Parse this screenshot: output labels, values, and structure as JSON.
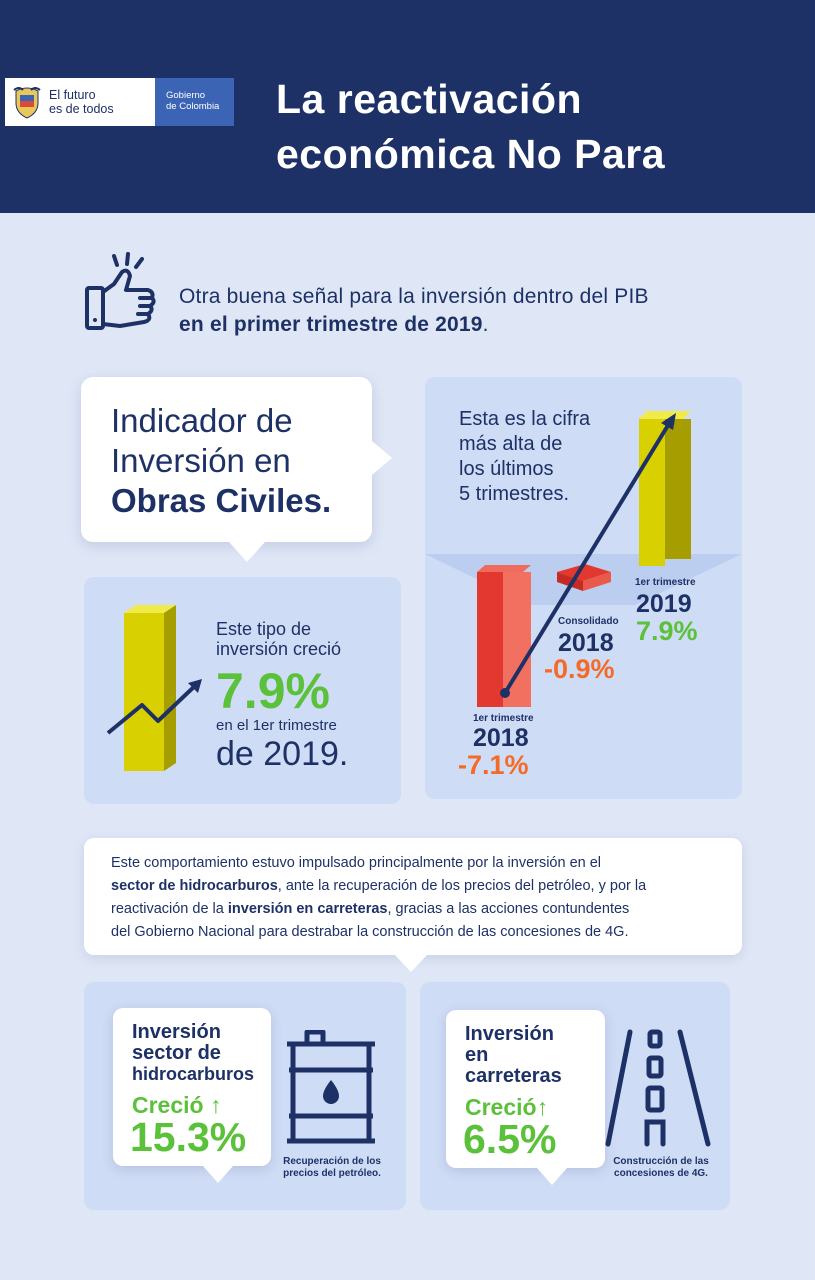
{
  "header": {
    "logo_line1": "El futuro",
    "logo_line2": "es de todos",
    "gov_line1": "Gobierno",
    "gov_line2": "de Colombia",
    "title_line1": "La reactivación",
    "title_line2": "económica No Para"
  },
  "intro": {
    "line1": "Otra buena señal para la inversión dentro del PIB",
    "line2_bold": "en el primer trimestre de 2019",
    "line2_end": "."
  },
  "indicator": {
    "line1": "Indicador de",
    "line2": "Inversión en",
    "line3_bold": "Obras Civiles."
  },
  "growth": {
    "line1": "Este tipo de",
    "line2": "inversión creció",
    "value": "7.9%",
    "line3": "en el 1er trimestre",
    "line4": "de 2019."
  },
  "quarters": {
    "note_line1": "Esta es la cifra",
    "note_line2": "más alta de",
    "note_line3": "los últimos",
    "note_line4": "5 trimestres.",
    "items": [
      {
        "label": "1er trimestre",
        "year": "2018",
        "value": "-7.1%"
      },
      {
        "label": "Consolidado",
        "year": "2018",
        "value": "-0.9%"
      },
      {
        "label": "1er trimestre",
        "year": "2019",
        "value": "7.9%"
      }
    ]
  },
  "explanation": {
    "p1": "Este comportamiento estuvo impulsado principalmente por la inversión en el",
    "b1": "sector de hidrocarburos",
    "p2": ", ante la recuperación de los precios del petróleo, y por la",
    "p3": "reactivación de la ",
    "b2": "inversión en carreteras",
    "p4": ", gracias a las acciones contundentes",
    "p5": "del Gobierno Nacional para destrabar la construcción de las concesiones de 4G."
  },
  "cards": [
    {
      "title_line1": "Inversión",
      "title_line2": "sector de",
      "title_line3": "hidrocarburos",
      "grew": "Creció ↑",
      "value": "15.3%",
      "caption_line1": "Recuperación de los",
      "caption_line2": "precios del petróleo.",
      "icon": "oil-barrel-icon"
    },
    {
      "title_line1": "Inversión",
      "title_line2": "en",
      "title_line3": "carreteras",
      "grew": "Creció↑",
      "value": "6.5%",
      "caption_line1": "Construcción de las",
      "caption_line2": "concesiones de 4G.",
      "icon": "road-icon"
    }
  ],
  "colors": {
    "navy": "#1e3166",
    "background": "#dfe7f7",
    "panel": "#cfdcf6",
    "green": "#5cc13a",
    "orange": "#f26b28",
    "red_bar": "#e3382f",
    "yellow_bar": "#d8d000"
  }
}
